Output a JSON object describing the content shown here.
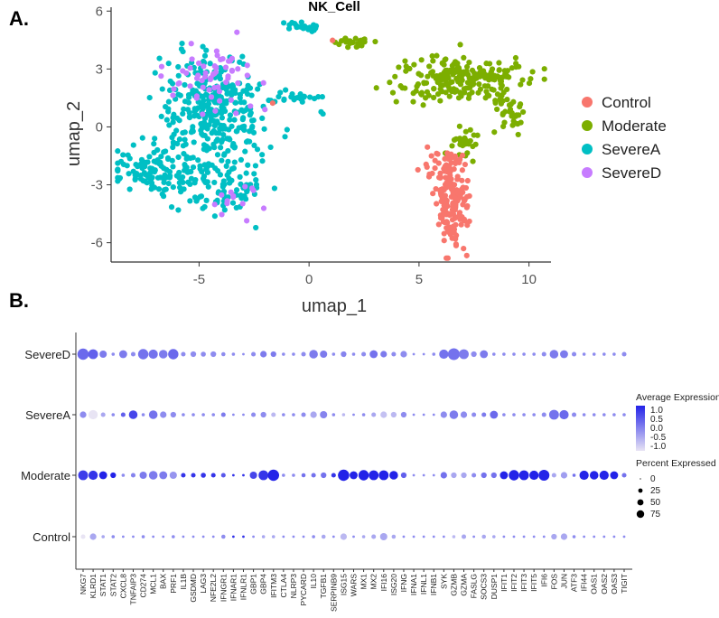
{
  "chart_data": [
    {
      "type": "scatter",
      "panel_label": "A.",
      "title": "NK_Cell",
      "xlabel": "umap_1",
      "ylabel": "umap_2",
      "xlim": [
        -9,
        11
      ],
      "ylim": [
        -7,
        6.2
      ],
      "xticks": [
        "-5",
        "0",
        "5",
        "10"
      ],
      "xtick_values": [
        -5,
        0,
        5,
        10
      ],
      "yticks": [
        "6",
        "3",
        "0",
        "-3",
        "-6"
      ],
      "ytick_values": [
        6,
        3,
        0,
        -3,
        -6
      ],
      "series": [
        {
          "name": "Control",
          "color": "#F8766D",
          "clusters": [
            {
              "cx": 6.5,
              "cy": -3.8,
              "sx": 0.4,
              "sy": 1.2,
              "n": 160
            },
            {
              "cx": 6.3,
              "cy": -2.2,
              "sx": 0.5,
              "sy": 0.4,
              "n": 30
            },
            {
              "cx": 1.1,
              "cy": 4.4,
              "sx": 0.1,
              "sy": 0.1,
              "n": 1
            },
            {
              "cx": -1.5,
              "cy": 1.1,
              "sx": 0.1,
              "sy": 0.1,
              "n": 1
            }
          ]
        },
        {
          "name": "Moderate",
          "color": "#7CAE00",
          "clusters": [
            {
              "cx": 6.8,
              "cy": 2.5,
              "sx": 1.4,
              "sy": 0.6,
              "n": 200
            },
            {
              "cx": 9.0,
              "cy": 0.8,
              "sx": 0.5,
              "sy": 0.7,
              "n": 40
            },
            {
              "cx": 7.0,
              "cy": -0.8,
              "sx": 0.3,
              "sy": 0.5,
              "n": 30
            },
            {
              "cx": 2.0,
              "cy": 4.4,
              "sx": 0.35,
              "sy": 0.15,
              "n": 25
            }
          ]
        },
        {
          "name": "SevereA",
          "color": "#00BFC4",
          "clusters": [
            {
              "cx": -4.4,
              "cy": 0.8,
              "sx": 1.2,
              "sy": 1.5,
              "n": 330
            },
            {
              "cx": -6.8,
              "cy": -2.3,
              "sx": 1.2,
              "sy": 0.6,
              "n": 130
            },
            {
              "cx": -3.6,
              "cy": -3.3,
              "sx": 0.8,
              "sy": 0.6,
              "n": 70
            },
            {
              "cx": -0.3,
              "cy": 5.2,
              "sx": 0.4,
              "sy": 0.15,
              "n": 25
            },
            {
              "cx": -0.5,
              "cy": 1.6,
              "sx": 0.5,
              "sy": 0.15,
              "n": 18
            },
            {
              "cx": 0.6,
              "cy": 0.8,
              "sx": 0.1,
              "sy": 0.1,
              "n": 2
            }
          ]
        },
        {
          "name": "SevereD",
          "color": "#C77CFF",
          "clusters": [
            {
              "cx": -4.3,
              "cy": 2.4,
              "sx": 1.1,
              "sy": 0.8,
              "n": 60
            },
            {
              "cx": -3.3,
              "cy": -3.7,
              "sx": 0.6,
              "sy": 0.4,
              "n": 14
            }
          ]
        }
      ],
      "legend": [
        "Control",
        "Moderate",
        "SevereA",
        "SevereD"
      ],
      "legend_position": "right"
    },
    {
      "type": "dotplot",
      "panel_label": "B.",
      "rows": [
        "SevereD",
        "SevereA",
        "Moderate",
        "Control"
      ],
      "genes": [
        "NKG7",
        "KLRD1",
        "STAT1",
        "STAT2",
        "CXCL8",
        "TNFAIP3",
        "CD274",
        "MCL1",
        "BAX",
        "PRF1",
        "IL1B",
        "GSDMD",
        "LAG3",
        "NFE2L2",
        "IFNGR1",
        "IFNAR1",
        "IFNLR1",
        "GBP1",
        "GBP4",
        "IFITM3",
        "CTLA4",
        "NLRP3",
        "PYCARD",
        "IL10",
        "TGFB1",
        "SERPINB9",
        "ISG15",
        "WARS",
        "MX1",
        "MX2",
        "IFI16",
        "ISG20",
        "IFNG",
        "IFNA1",
        "IFNL1",
        "IFNB1",
        "SYK",
        "GZMB",
        "GZMA",
        "FASLG",
        "SOCS3",
        "DUSP1",
        "IFIT1",
        "IFIT2",
        "IFIT3",
        "IFIT5",
        "IFI6",
        "FOS",
        "JUN",
        "ATF3",
        "IFI44",
        "OAS1",
        "OAS2",
        "OAS3",
        "TIGIT"
      ],
      "percent_expressed": [
        [
          60,
          45,
          25,
          5,
          30,
          10,
          50,
          40,
          35,
          50,
          10,
          15,
          12,
          15,
          8,
          5,
          3,
          10,
          20,
          15,
          5,
          5,
          10,
          35,
          25,
          5,
          15,
          5,
          10,
          30,
          20,
          10,
          20,
          3,
          3,
          5,
          40,
          65,
          45,
          15,
          30,
          5,
          5,
          5,
          5,
          5,
          10,
          35,
          30,
          10,
          5,
          5,
          5,
          5,
          10
        ],
        [
          20,
          40,
          10,
          5,
          10,
          35,
          5,
          35,
          20,
          15,
          5,
          5,
          5,
          5,
          10,
          3,
          3,
          10,
          15,
          10,
          5,
          5,
          10,
          20,
          25,
          5,
          5,
          3,
          5,
          10,
          20,
          15,
          15,
          3,
          3,
          3,
          20,
          35,
          20,
          10,
          10,
          30,
          5,
          5,
          5,
          5,
          10,
          45,
          40,
          10,
          5,
          5,
          5,
          5,
          5
        ],
        [
          45,
          40,
          30,
          15,
          5,
          10,
          25,
          35,
          30,
          25,
          10,
          10,
          12,
          10,
          10,
          3,
          3,
          25,
          45,
          60,
          5,
          5,
          8,
          10,
          15,
          10,
          60,
          30,
          50,
          45,
          45,
          35,
          15,
          3,
          3,
          3,
          20,
          15,
          15,
          10,
          15,
          15,
          30,
          50,
          45,
          40,
          55,
          10,
          20,
          5,
          40,
          35,
          40,
          30,
          10
        ],
        [
          10,
          20,
          5,
          5,
          3,
          3,
          5,
          3,
          3,
          5,
          3,
          3,
          3,
          3,
          8,
          3,
          3,
          3,
          5,
          5,
          3,
          3,
          3,
          5,
          8,
          3,
          20,
          3,
          5,
          10,
          25,
          8,
          3,
          3,
          3,
          3,
          3,
          5,
          10,
          3,
          8,
          5,
          3,
          3,
          3,
          3,
          3,
          15,
          20,
          5,
          3,
          3,
          3,
          3,
          3
        ]
      ],
      "average_expression": [
        [
          0.4,
          0.5,
          0.2,
          0,
          0.2,
          0,
          0.3,
          0.3,
          0.2,
          0.4,
          0,
          0,
          0,
          0,
          0,
          0,
          0,
          0,
          0.2,
          0.2,
          0,
          0,
          0,
          0.2,
          0.2,
          0,
          0.1,
          0,
          0,
          0.3,
          0.2,
          0,
          0,
          0,
          0,
          0,
          0.3,
          0.3,
          0.2,
          0,
          0.2,
          0,
          0,
          0,
          0,
          0,
          0,
          0.2,
          0.2,
          0,
          0,
          0,
          0,
          0,
          0
        ],
        [
          0,
          -1.0,
          -0.3,
          0,
          0.5,
          0.8,
          0,
          0.3,
          0,
          0,
          0,
          0,
          0,
          0,
          0.2,
          0,
          0,
          0,
          0,
          -0.5,
          0,
          0,
          0,
          -0.3,
          0.1,
          0,
          -0.5,
          0,
          0,
          -0.3,
          -0.6,
          -0.5,
          0,
          0,
          0,
          0,
          0,
          0.2,
          0,
          0,
          0.2,
          0.4,
          0,
          0,
          0,
          0,
          0,
          0.3,
          0.4,
          0,
          0,
          0,
          0,
          0,
          0
        ],
        [
          0.9,
          1.0,
          1.2,
          1.2,
          0,
          0.1,
          0.2,
          0.2,
          0.2,
          -0.1,
          1.0,
          1.0,
          1.0,
          1.0,
          0.6,
          1.0,
          1.0,
          0.8,
          1.0,
          1.3,
          0,
          0,
          0.3,
          0.3,
          0.3,
          1.0,
          1.3,
          1.2,
          1.3,
          1.3,
          1.3,
          1.3,
          0.5,
          0,
          0,
          0,
          0.3,
          -0.3,
          -0.3,
          0,
          0.3,
          0.3,
          1.2,
          1.3,
          1.3,
          1.3,
          1.3,
          -0.3,
          -0.2,
          0.3,
          1.2,
          1.2,
          1.2,
          1.2,
          0.3
        ],
        [
          -1.0,
          -0.3,
          -0.3,
          0,
          0,
          0,
          0,
          0,
          0,
          0,
          0,
          0,
          0,
          0,
          0,
          1.0,
          1.0,
          0,
          -0.3,
          -0.3,
          0,
          0,
          0,
          0,
          -0.3,
          0,
          -0.5,
          0,
          -0.3,
          -0.3,
          -0.3,
          -0.3,
          0,
          0,
          0,
          0,
          0,
          -0.5,
          -0.3,
          0,
          -0.3,
          -0.3,
          0,
          0,
          0,
          0,
          0,
          -0.3,
          -0.3,
          0,
          0,
          0,
          0,
          0,
          0
        ]
      ],
      "color_legend": {
        "title": "Average Expression",
        "ticks": [
          "1.0",
          "0.5",
          "0.0",
          "-0.5",
          "-1.0"
        ],
        "low": "#E8E4F4",
        "high": "#2323E8",
        "range": [
          -1.0,
          1.2
        ]
      },
      "size_legend": {
        "title": "Percent Expressed",
        "ticks": [
          "0",
          "25",
          "50",
          "75"
        ],
        "values": [
          0,
          25,
          50,
          75
        ]
      },
      "legend_position": "right"
    }
  ]
}
